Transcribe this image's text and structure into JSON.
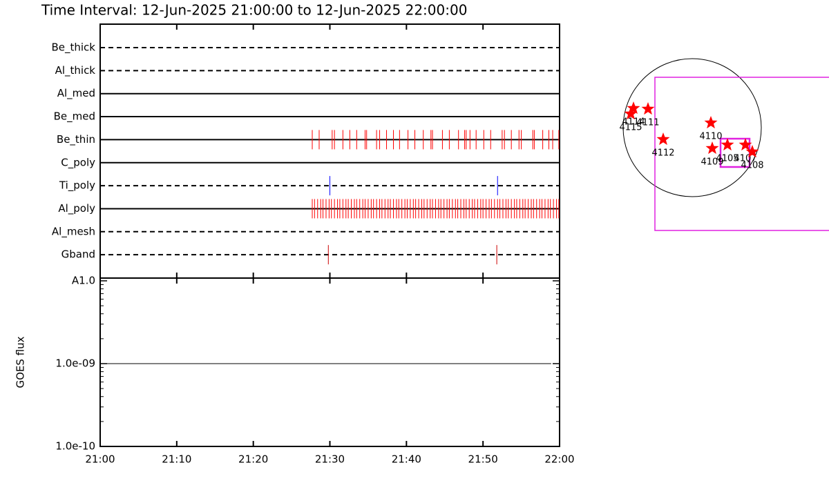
{
  "chart_data": [
    {
      "type": "timeline",
      "title": "Time Interval: 12-Jun-2025 21:00:00 to 12-Jun-2025 22:00:00",
      "categories": [
        "Be_thick",
        "Al_thick",
        "Al_med",
        "Be_med",
        "Be_thin",
        "C_poly",
        "Ti_poly",
        "Al_poly",
        "Al_mesh",
        "Gband"
      ],
      "row_styles": [
        "dashed",
        "dashed",
        "solid",
        "solid",
        "solid",
        "solid",
        "dashed",
        "solid",
        "dashed",
        "dashed"
      ],
      "xlim": [
        0,
        60
      ],
      "xticks": [
        0,
        10,
        20,
        30,
        40,
        50,
        60
      ],
      "series": [
        {
          "name": "Be_thin",
          "color": "#ff0000",
          "x": [
            27.7,
            28.6,
            30.3,
            30.6,
            31.7,
            32.6,
            33.5,
            34.6,
            34.8,
            36.1,
            36.5,
            37.4,
            38.3,
            39.1,
            40.2,
            41.1,
            42.2,
            43.2,
            43.4,
            44.7,
            45.6,
            46.8,
            47.6,
            47.8,
            48.3,
            49.1,
            50.1,
            51.0,
            52.5,
            52.8,
            53.7,
            54.7,
            55.0,
            56.5,
            56.7,
            57.8,
            58.6,
            59.1,
            59.9
          ]
        },
        {
          "name": "Ti_poly",
          "color": "#0000ff",
          "x": [
            30.0,
            51.9
          ]
        },
        {
          "name": "Al_poly",
          "color": "#ff0000",
          "x": [
            27.7,
            28.0,
            28.4,
            28.8,
            29.1,
            29.5,
            29.9,
            30.2,
            30.6,
            31.0,
            31.3,
            31.7,
            32.1,
            32.4,
            32.8,
            33.2,
            33.5,
            33.9,
            34.3,
            34.6,
            35.0,
            35.4,
            35.7,
            36.1,
            36.5,
            36.8,
            37.2,
            37.6,
            37.9,
            38.3,
            38.7,
            39.0,
            39.4,
            39.8,
            40.1,
            40.5,
            40.9,
            41.2,
            41.6,
            42.0,
            42.3,
            42.7,
            43.1,
            43.4,
            43.8,
            44.2,
            44.5,
            44.9,
            45.3,
            45.6,
            46.0,
            46.4,
            46.7,
            47.1,
            47.5,
            47.8,
            48.2,
            48.6,
            48.9,
            49.3,
            49.7,
            50.0,
            50.4,
            50.8,
            51.1,
            51.5,
            51.9,
            52.2,
            52.6,
            53.0,
            53.3,
            53.7,
            54.1,
            54.4,
            54.8,
            55.2,
            55.5,
            55.9,
            56.3,
            56.6,
            57.0,
            57.4,
            57.7,
            58.1,
            58.5,
            58.8,
            59.2,
            59.6,
            59.9
          ]
        },
        {
          "name": "Gband",
          "color": "#cc0000",
          "x": [
            29.8,
            51.8
          ]
        }
      ]
    },
    {
      "type": "line",
      "y_label": "GOES flux",
      "log_scale": true,
      "xlim": [
        0,
        60
      ],
      "xticks": [
        {
          "value": 0,
          "label": "21:00"
        },
        {
          "value": 10,
          "label": "21:10"
        },
        {
          "value": 20,
          "label": "21:20"
        },
        {
          "value": 30,
          "label": "21:30"
        },
        {
          "value": 40,
          "label": "21:40"
        },
        {
          "value": 50,
          "label": "21:50"
        },
        {
          "value": 60,
          "label": "22:00"
        }
      ],
      "ylim": [
        1e-10,
        1e-08
      ],
      "yticks": [
        {
          "value": 1e-08,
          "label": "A1.0"
        },
        {
          "value": 1e-09,
          "label": "1.0e-09"
        },
        {
          "value": 1e-10,
          "label": "1.0e-10"
        }
      ],
      "series": [
        {
          "color": "#000000",
          "x": [
            0.3,
            58.9
          ],
          "values": [
            1e-09,
            1e-09
          ]
        }
      ]
    },
    {
      "type": "map",
      "categories": [
        "4114",
        "4115",
        "4111",
        "4112",
        "4110",
        "4109",
        "4105",
        "4107",
        "4108"
      ],
      "x": [
        -0.85,
        -0.89,
        -0.64,
        -0.42,
        0.27,
        0.29,
        0.51,
        0.77,
        0.87
      ],
      "values": [
        0.28,
        0.2,
        0.27,
        -0.17,
        0.07,
        -0.3,
        -0.25,
        -0.25,
        -0.35
      ],
      "color": "#ff0000"
    }
  ]
}
